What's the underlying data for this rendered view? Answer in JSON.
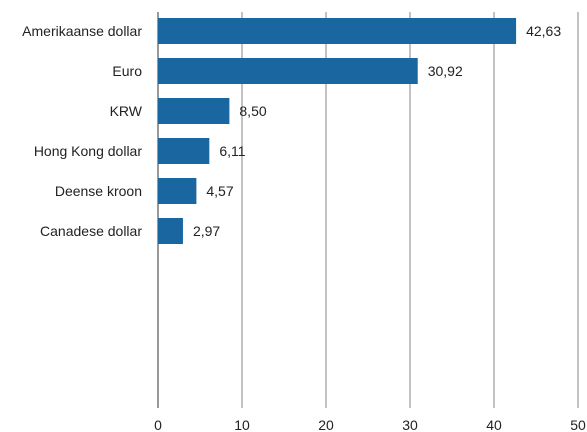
{
  "chart_data": {
    "type": "bar",
    "orientation": "horizontal",
    "categories": [
      "Amerikaanse dollar",
      "Euro",
      "KRW",
      "Hong Kong dollar",
      "Deense kroon",
      "Canadese dollar"
    ],
    "values": [
      42.63,
      30.92,
      8.5,
      6.11,
      4.57,
      2.97
    ],
    "value_labels": [
      "42,63",
      "30,92",
      "8,50",
      "6,11",
      "4,57",
      "2,97"
    ],
    "xticks": [
      "0",
      "10",
      "20",
      "30",
      "40",
      "50"
    ],
    "xlim": [
      0,
      50
    ],
    "title": "",
    "xlabel": "",
    "ylabel": "",
    "grid": "vertical",
    "legend": "none",
    "colors": {
      "bar": "#1a66a0",
      "grid": "#9a9a9a",
      "axis": "#555555"
    }
  }
}
